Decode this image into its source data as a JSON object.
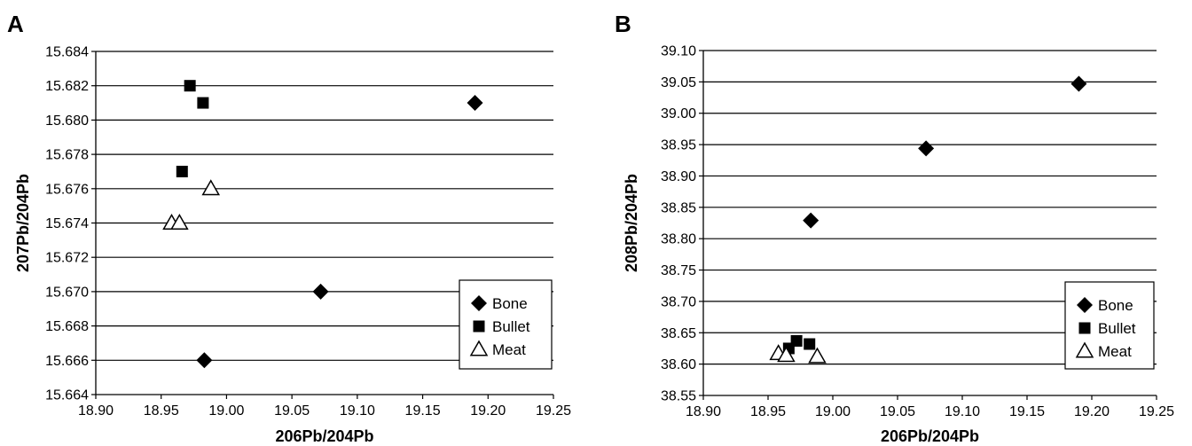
{
  "chart_data": [
    {
      "type": "scatter",
      "panel": "A",
      "title": "",
      "xlabel": "206Pb/204Pb",
      "ylabel": "207Pb/204Pb",
      "xlim": [
        18.9,
        19.25
      ],
      "ylim": [
        15.664,
        15.684
      ],
      "xticks": [
        "18.90",
        "18.95",
        "19.00",
        "19.05",
        "19.10",
        "19.15",
        "19.20",
        "19.25"
      ],
      "yticks": [
        "15.664",
        "15.666",
        "15.668",
        "15.670",
        "15.672",
        "15.674",
        "15.676",
        "15.678",
        "15.680",
        "15.682",
        "15.684"
      ],
      "grid": "horizontal",
      "legend_position": "bottom-right",
      "series": [
        {
          "name": "Bone",
          "marker": "diamond",
          "points": [
            [
              19.19,
              15.681
            ],
            [
              19.072,
              15.67
            ],
            [
              18.983,
              15.666
            ]
          ]
        },
        {
          "name": "Bullet",
          "marker": "square",
          "points": [
            [
              18.972,
              15.682
            ],
            [
              18.982,
              15.681
            ],
            [
              18.966,
              15.677
            ]
          ]
        },
        {
          "name": "Meat",
          "marker": "triangle-open",
          "points": [
            [
              18.988,
              15.676
            ],
            [
              18.958,
              15.674
            ],
            [
              18.964,
              15.674
            ]
          ]
        }
      ]
    },
    {
      "type": "scatter",
      "panel": "B",
      "title": "",
      "xlabel": "206Pb/204Pb",
      "ylabel": "208Pb/204Pb",
      "xlim": [
        18.9,
        19.25
      ],
      "ylim": [
        38.55,
        39.1
      ],
      "xticks": [
        "18.90",
        "18.95",
        "19.00",
        "19.05",
        "19.10",
        "19.15",
        "19.20",
        "19.25"
      ],
      "yticks": [
        "38.55",
        "38.60",
        "38.65",
        "38.70",
        "38.75",
        "38.80",
        "38.85",
        "38.90",
        "38.95",
        "39.00",
        "39.05",
        "39.10"
      ],
      "grid": "horizontal",
      "legend_position": "bottom-right",
      "series": [
        {
          "name": "Bone",
          "marker": "diamond",
          "points": [
            [
              19.19,
              39.047
            ],
            [
              19.072,
              38.944
            ],
            [
              18.983,
              38.829
            ]
          ]
        },
        {
          "name": "Bullet",
          "marker": "square",
          "points": [
            [
              18.972,
              38.637
            ],
            [
              18.982,
              38.632
            ],
            [
              18.966,
              38.625
            ]
          ]
        },
        {
          "name": "Meat",
          "marker": "triangle-open",
          "points": [
            [
              18.958,
              38.617
            ],
            [
              18.964,
              38.614
            ],
            [
              18.988,
              38.612
            ]
          ]
        }
      ]
    }
  ]
}
